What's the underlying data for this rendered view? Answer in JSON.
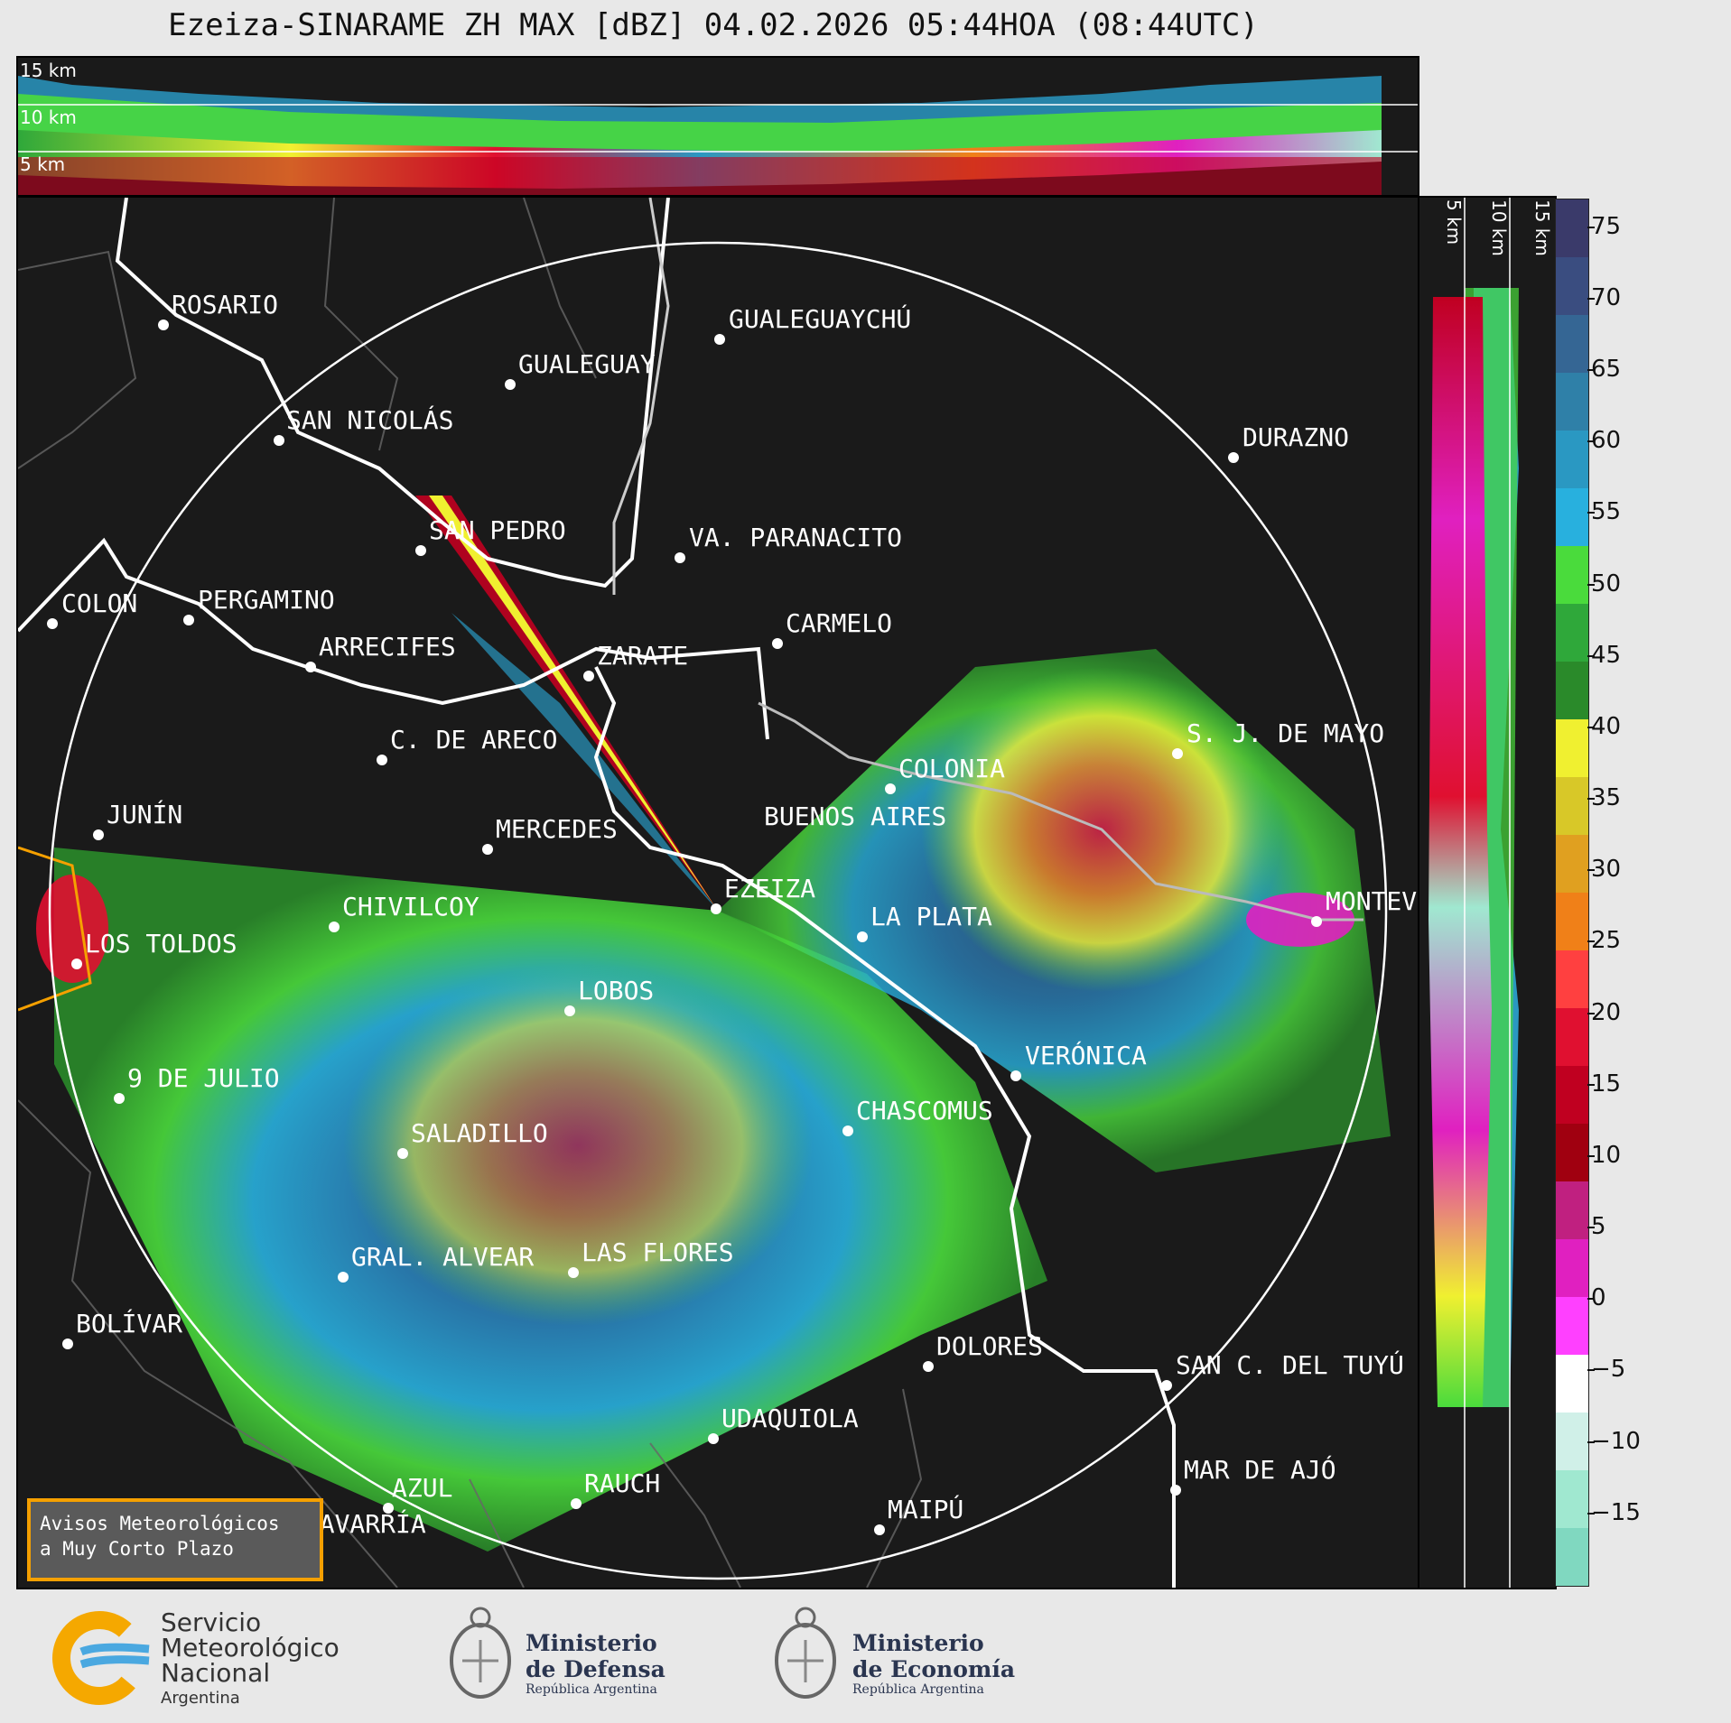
{
  "title": "Ezeiza-SINARAME ZH MAX [dBZ] 04.02.2026 05:44HOA (08:44UTC)",
  "top_panel": {
    "levels": [
      "15 km",
      "10 km",
      "5 km"
    ]
  },
  "side_panel": {
    "levels": [
      "5 km",
      "10 km",
      "15 km"
    ]
  },
  "colorbar": {
    "unit": "dBZ",
    "ticks": [
      "75",
      "70",
      "65",
      "60",
      "55",
      "50",
      "45",
      "40",
      "35",
      "30",
      "25",
      "20",
      "15",
      "10",
      "5",
      "0",
      "−5",
      "−10",
      "−15"
    ],
    "tick_values": [
      75,
      70,
      65,
      60,
      55,
      50,
      45,
      40,
      35,
      30,
      25,
      20,
      15,
      10,
      5,
      0,
      -5,
      -10,
      -15
    ],
    "range": [
      -20,
      77
    ],
    "colors": [
      "#3a3a6a",
      "#3a4d80",
      "#356694",
      "#2f80a8",
      "#2a98c2",
      "#28b0de",
      "#4adb3c",
      "#2fa83a",
      "#2a8a2a",
      "#f0f030",
      "#d8c828",
      "#e0a020",
      "#f08018",
      "#ff4040",
      "#e01030",
      "#c00020",
      "#a00010",
      "#c02080",
      "#e020c0",
      "#ff40ff",
      "#ffffff",
      "#d0f0e8",
      "#a0e8d0",
      "#80d8c0"
    ]
  },
  "cities": [
    {
      "name": "ROSARIO"
    },
    {
      "name": "GUALEGUAYCHÚ"
    },
    {
      "name": "GUALEGUAY"
    },
    {
      "name": "SAN NICOLÁS"
    },
    {
      "name": "DURAZNO"
    },
    {
      "name": "SAN PEDRO"
    },
    {
      "name": "VA. PARANACITO"
    },
    {
      "name": "COLON"
    },
    {
      "name": "PERGAMINO"
    },
    {
      "name": "CARMELO"
    },
    {
      "name": "ARRECIFES"
    },
    {
      "name": "ZARATE"
    },
    {
      "name": "S. J. DE MAYO"
    },
    {
      "name": "C. DE ARECO"
    },
    {
      "name": "COLONIA"
    },
    {
      "name": "JUNÍN"
    },
    {
      "name": "BUENOS AIRES"
    },
    {
      "name": "MERCEDES"
    },
    {
      "name": "EZEIZA"
    },
    {
      "name": "MONTEV"
    },
    {
      "name": "CHIVILCOY"
    },
    {
      "name": "LA PLATA"
    },
    {
      "name": "LOS TOLDOS"
    },
    {
      "name": "LOBOS"
    },
    {
      "name": "VERÓNICA"
    },
    {
      "name": "9 DE JULIO"
    },
    {
      "name": "CHASCOMUS"
    },
    {
      "name": "SALADILLO"
    },
    {
      "name": "GRAL. ALVEAR"
    },
    {
      "name": "LAS FLORES"
    },
    {
      "name": "BOLÍVAR"
    },
    {
      "name": "DOLORES"
    },
    {
      "name": "SAN C. DEL TUYÚ"
    },
    {
      "name": "UDAQUIOLA"
    },
    {
      "name": "MAR DE AJÓ"
    },
    {
      "name": "AZUL"
    },
    {
      "name": "RAUCH"
    },
    {
      "name": "OLAVARRÍA"
    },
    {
      "name": "MAIPÚ"
    }
  ],
  "warning_box": {
    "line1": "Avisos Meteorológicos",
    "line2": "a Muy Corto Plazo"
  },
  "logos": {
    "smn": {
      "line1": "Servicio",
      "line2": "Meteorológico",
      "line3": "Nacional",
      "line4": "Argentina"
    },
    "defensa": {
      "line1": "Ministerio",
      "line2": "de Defensa",
      "line3": "República Argentina"
    },
    "economia": {
      "line1": "Ministerio",
      "line2": "de Economía",
      "line3": "República Argentina"
    }
  }
}
